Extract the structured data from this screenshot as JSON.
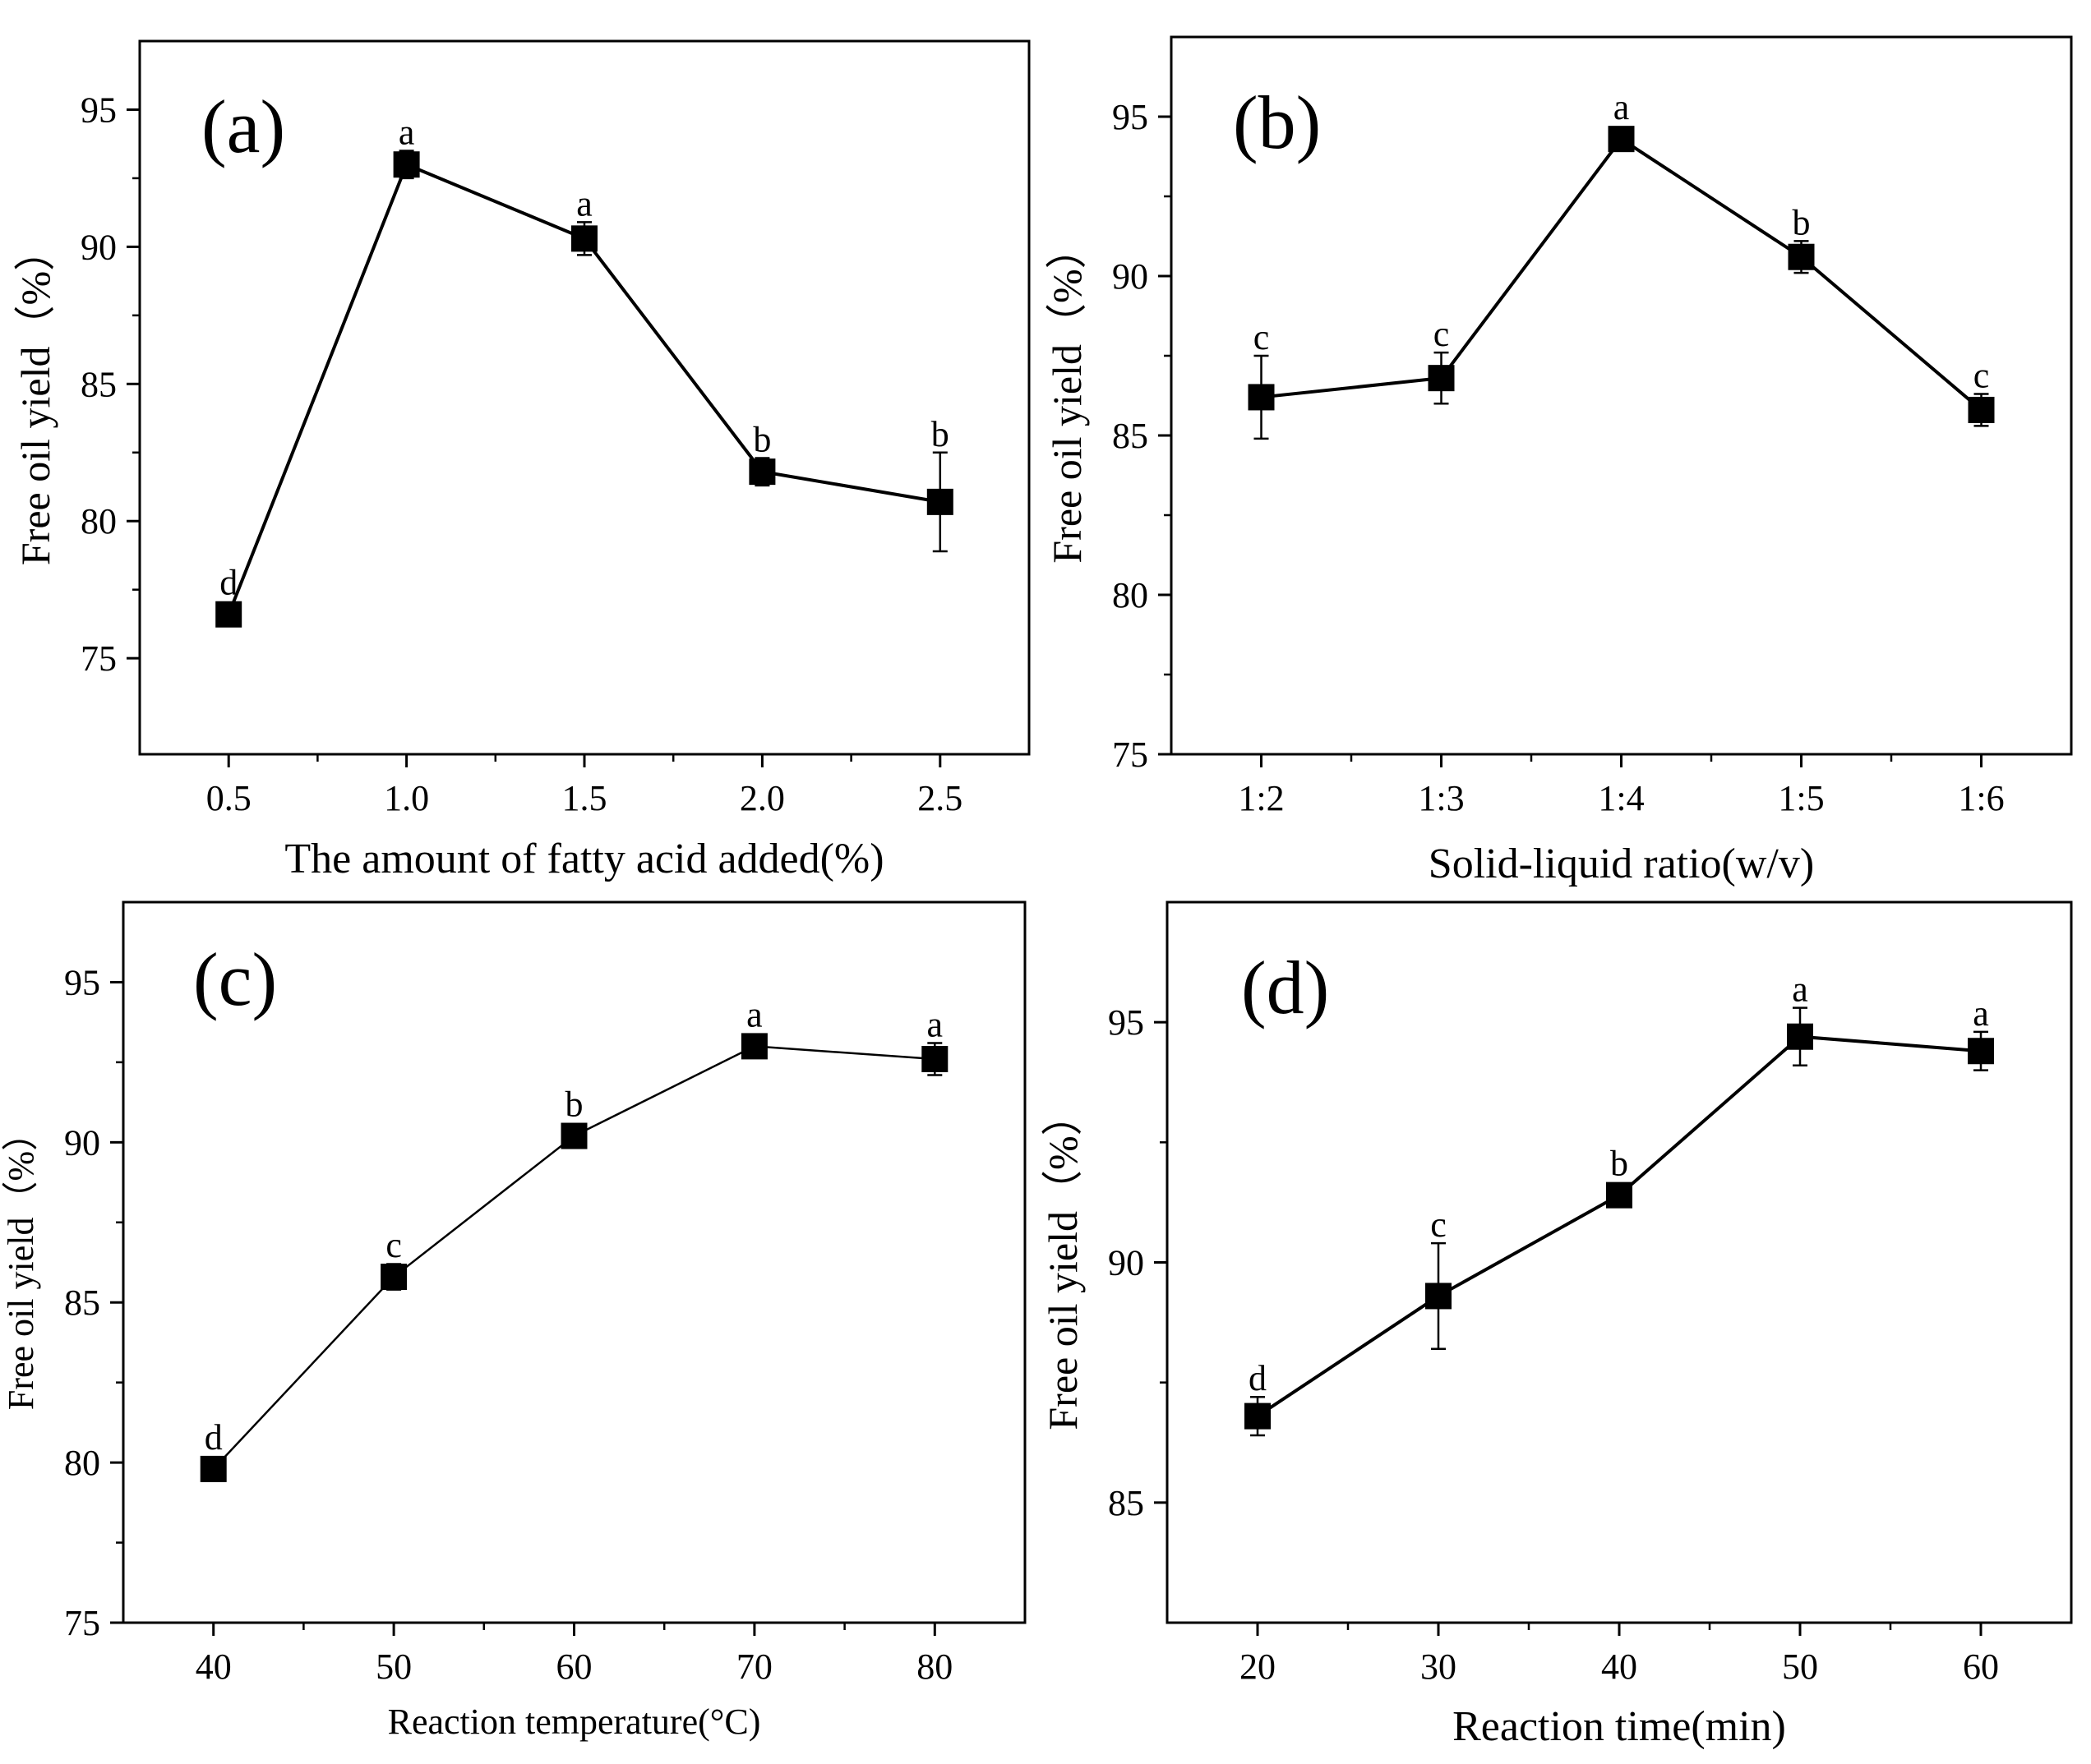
{
  "figure": {
    "description_free": true
  },
  "chart_data": [
    {
      "type": "line",
      "panel_label": "(a)",
      "xlabel": "The amount of fatty acid added(%)",
      "ylabel": "Free oil yield（%）",
      "categories": [
        "0.5",
        "1.0",
        "1.5",
        "2.0",
        "2.5"
      ],
      "x": [
        0.5,
        1.0,
        1.5,
        2.0,
        2.5
      ],
      "xlim": [
        0.25,
        2.75
      ],
      "xticks": [
        0.5,
        1.0,
        1.5,
        2.0,
        2.5
      ],
      "xtick_labels": [
        "0.5",
        "1.0",
        "1.5",
        "2.0",
        "2.5"
      ],
      "ylim": [
        71.5,
        97.5
      ],
      "yticks": [
        75,
        80,
        85,
        90,
        95
      ],
      "ytick_labels": [
        "75",
        "80",
        "85",
        "90",
        "95"
      ],
      "series": [
        {
          "name": "Free oil yield",
          "values": [
            76.6,
            93.0,
            90.3,
            81.8,
            80.7
          ],
          "errors": [
            0.2,
            0.5,
            0.6,
            0.5,
            1.8
          ],
          "letters": [
            "d",
            "a",
            "a",
            "b",
            "b"
          ]
        }
      ]
    },
    {
      "type": "line",
      "panel_label": "(b)",
      "xlabel": "Solid-liquid ratio(w/v)",
      "ylabel": "Free oil yield（%）",
      "categories": [
        "1:2",
        "1:3",
        "1:4",
        "1:5",
        "1:6"
      ],
      "x": [
        0,
        1,
        2,
        3,
        4
      ],
      "xlim": [
        -0.5,
        4.5
      ],
      "xticks": [
        0,
        1,
        2,
        3,
        4
      ],
      "xtick_labels": [
        "1:2",
        "1:3",
        "1:4",
        "1:5",
        "1:6"
      ],
      "ylim": [
        75,
        97.5
      ],
      "yticks": [
        75,
        80,
        85,
        90,
        95
      ],
      "ytick_labels": [
        "75",
        "80",
        "85",
        "90",
        "95"
      ],
      "series": [
        {
          "name": "Free oil yield",
          "values": [
            86.2,
            86.8,
            94.3,
            90.6,
            85.8
          ],
          "errors": [
            1.3,
            0.8,
            0.3,
            0.5,
            0.5
          ],
          "letters": [
            "c",
            "c",
            "a",
            "b",
            "c"
          ]
        }
      ]
    },
    {
      "type": "line",
      "panel_label": "(c)",
      "xlabel": "Reaction temperature(°C)",
      "ylabel": "Free oil yield（%）",
      "categories": [
        "40",
        "50",
        "60",
        "70",
        "80"
      ],
      "x": [
        40,
        50,
        60,
        70,
        80
      ],
      "xlim": [
        35,
        85
      ],
      "xticks": [
        40,
        50,
        60,
        70,
        80
      ],
      "xtick_labels": [
        "40",
        "50",
        "60",
        "70",
        "80"
      ],
      "ylim": [
        75,
        97.5
      ],
      "yticks": [
        75,
        80,
        85,
        90,
        95
      ],
      "ytick_labels": [
        "75",
        "80",
        "85",
        "90",
        "95"
      ],
      "series": [
        {
          "name": "Free oil yield",
          "values": [
            79.8,
            85.8,
            90.2,
            93.0,
            92.6
          ],
          "errors": [
            0.2,
            0.4,
            0.2,
            0.2,
            0.5
          ],
          "letters": [
            "d",
            "c",
            "b",
            "a",
            "a"
          ]
        }
      ]
    },
    {
      "type": "line",
      "panel_label": "(d)",
      "xlabel": "Reaction time(min)",
      "ylabel": "Free oil yield（%）",
      "categories": [
        "20",
        "30",
        "40",
        "50",
        "60"
      ],
      "x": [
        20,
        30,
        40,
        50,
        60
      ],
      "xlim": [
        15,
        65
      ],
      "xticks": [
        20,
        30,
        40,
        50,
        60
      ],
      "xtick_labels": [
        "20",
        "30",
        "40",
        "50",
        "60"
      ],
      "ylim": [
        82.5,
        97.5
      ],
      "yticks": [
        85,
        90,
        95
      ],
      "ytick_labels": [
        "85",
        "90",
        "95"
      ],
      "series": [
        {
          "name": "Free oil yield",
          "values": [
            86.8,
            89.3,
            91.4,
            94.7,
            94.4
          ],
          "errors": [
            0.4,
            1.1,
            0.2,
            0.6,
            0.4
          ],
          "letters": [
            "d",
            "c",
            "b",
            "a",
            "a"
          ]
        }
      ]
    }
  ]
}
